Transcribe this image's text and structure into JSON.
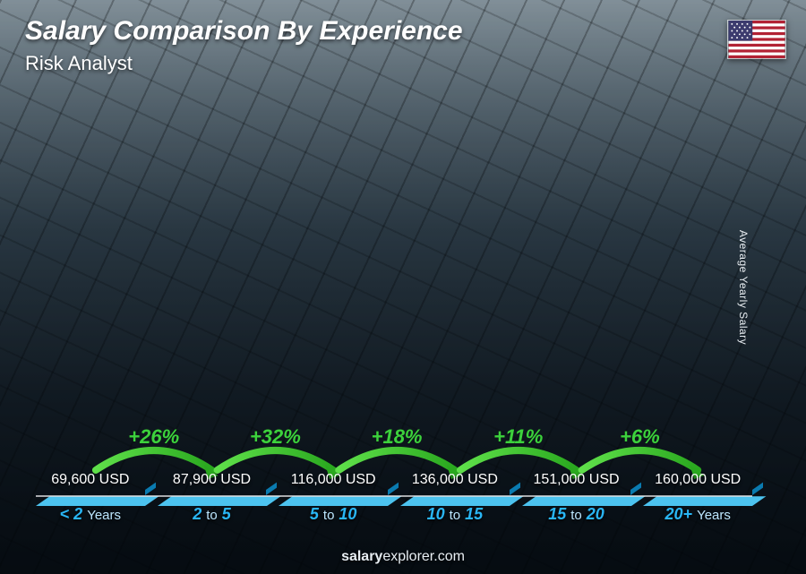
{
  "header": {
    "title": "Salary Comparison By Experience",
    "subtitle": "Risk Analyst"
  },
  "flag": {
    "name": "us-flag"
  },
  "y_axis_label": "Average Yearly Salary",
  "footer": {
    "brand_bold": "salary",
    "brand_rest": "explorer.com"
  },
  "chart": {
    "type": "bar",
    "currency": "USD",
    "max_value": 160000,
    "bar_front_color": "#18a6e0",
    "bar_front_gradient_to": "#0f8fc9",
    "bar_top_color": "#4cc3ef",
    "bar_side_color": "#0a7bb0",
    "value_label_color": "#ffffff",
    "value_label_fontsize": 16,
    "xlabel_accent_color": "#29b6f6",
    "xlabel_thin_color": "#bde7ff",
    "baseline_color": "rgba(255,255,255,0.65)",
    "bars": [
      {
        "value": 69600,
        "value_label": "69,600 USD",
        "x_bold_a": "< 2",
        "x_thin": "Years",
        "x_bold_b": ""
      },
      {
        "value": 87900,
        "value_label": "87,900 USD",
        "x_bold_a": "2",
        "x_thin": "to",
        "x_bold_b": "5"
      },
      {
        "value": 116000,
        "value_label": "116,000 USD",
        "x_bold_a": "5",
        "x_thin": "to",
        "x_bold_b": "10"
      },
      {
        "value": 136000,
        "value_label": "136,000 USD",
        "x_bold_a": "10",
        "x_thin": "to",
        "x_bold_b": "15"
      },
      {
        "value": 151000,
        "value_label": "151,000 USD",
        "x_bold_a": "15",
        "x_thin": "to",
        "x_bold_b": "20"
      },
      {
        "value": 160000,
        "value_label": "160,000 USD",
        "x_bold_a": "20+",
        "x_thin": "Years",
        "x_bold_b": ""
      }
    ],
    "increases": [
      {
        "label": "+26%"
      },
      {
        "label": "+32%"
      },
      {
        "label": "+18%"
      },
      {
        "label": "+11%"
      },
      {
        "label": "+6%"
      }
    ],
    "arc_stroke": "#5fe04a",
    "arc_stroke_dark": "#2aa81f",
    "arc_label_color": "#3dd13d"
  }
}
